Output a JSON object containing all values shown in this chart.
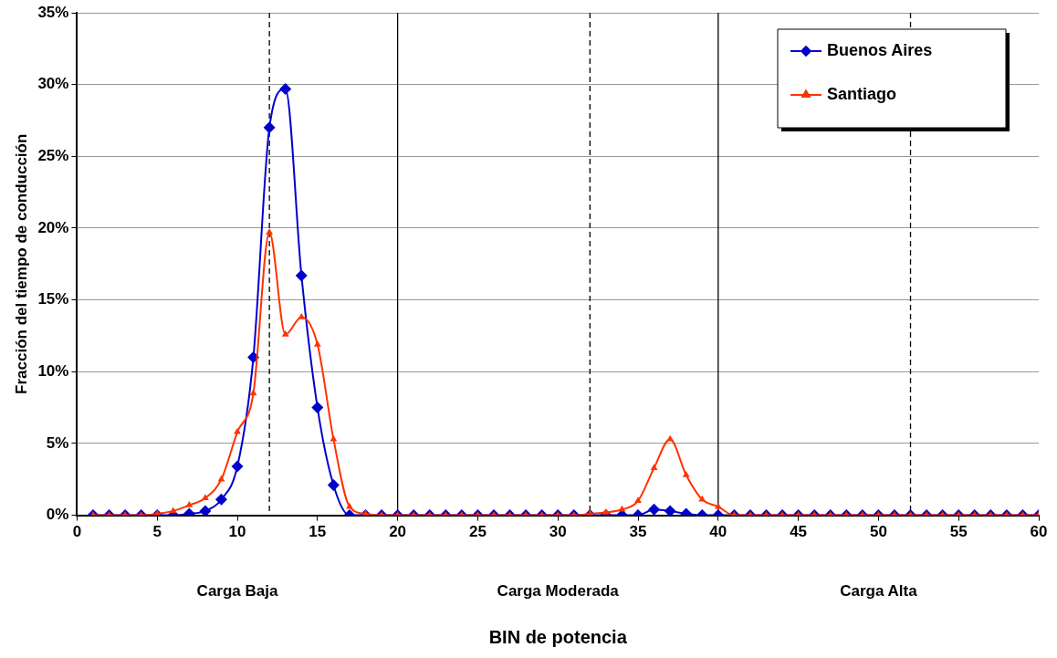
{
  "chart_data": {
    "type": "line",
    "xlabel": "BIN de potencia",
    "ylabel": "Fracción del tiempo de conducción",
    "x": [
      1,
      2,
      3,
      4,
      5,
      6,
      7,
      8,
      9,
      10,
      11,
      12,
      13,
      14,
      15,
      16,
      17,
      18,
      19,
      20,
      21,
      22,
      23,
      24,
      25,
      26,
      27,
      28,
      29,
      30,
      31,
      32,
      33,
      34,
      35,
      36,
      37,
      38,
      39,
      40,
      41,
      42,
      43,
      44,
      45,
      46,
      47,
      48,
      49,
      50,
      51,
      52,
      53,
      54,
      55,
      56,
      57,
      58,
      59,
      60
    ],
    "series": [
      {
        "name": "Buenos Aires",
        "color": "#0000cc",
        "marker": "diamond",
        "values": [
          0,
          0,
          0,
          0,
          0,
          0,
          0.1,
          0.3,
          1.1,
          3.4,
          11,
          27,
          29.7,
          16.7,
          7.5,
          2.1,
          0,
          0,
          0,
          0,
          0,
          0,
          0,
          0,
          0,
          0,
          0,
          0,
          0,
          0,
          0,
          0,
          0,
          0,
          0,
          0.4,
          0.3,
          0.1,
          0,
          0,
          0,
          0,
          0,
          0,
          0,
          0,
          0,
          0,
          0,
          0,
          0,
          0,
          0,
          0,
          0,
          0,
          0,
          0,
          0,
          0
        ]
      },
      {
        "name": "Santiago",
        "color": "#ff3300",
        "marker": "triangle",
        "values": [
          0,
          0,
          0,
          0,
          0.1,
          0.3,
          0.7,
          1.2,
          2.5,
          5.8,
          8.5,
          19.7,
          12.6,
          13.8,
          11.9,
          5.3,
          0.6,
          0.1,
          0,
          0,
          0,
          0,
          0,
          0,
          0,
          0,
          0,
          0,
          0,
          0,
          0,
          0.1,
          0.2,
          0.4,
          1,
          3.3,
          5.3,
          2.8,
          1.1,
          0.6,
          0,
          0,
          0,
          0,
          0,
          0,
          0,
          0,
          0,
          0,
          0,
          0,
          0,
          0,
          0,
          0,
          0,
          0,
          0,
          0
        ]
      }
    ],
    "xlim": [
      0,
      60
    ],
    "xticks": [
      0,
      5,
      10,
      15,
      20,
      25,
      30,
      35,
      40,
      45,
      50,
      55,
      60
    ],
    "ylim": [
      0,
      35
    ],
    "yticks": [
      {
        "value": 0,
        "label": "0%"
      },
      {
        "value": 5,
        "label": "5%"
      },
      {
        "value": 10,
        "label": "10%"
      },
      {
        "value": 15,
        "label": "15%"
      },
      {
        "value": 20,
        "label": "20%"
      },
      {
        "value": 25,
        "label": "25%"
      },
      {
        "value": 30,
        "label": "30%"
      },
      {
        "value": 35,
        "label": "35%"
      }
    ],
    "ref_lines": [
      {
        "axis": "x",
        "value": 12,
        "color": "#000000",
        "line_style": "dashed"
      },
      {
        "axis": "x",
        "value": 20,
        "color": "#000000",
        "line_style": "solid"
      },
      {
        "axis": "x",
        "value": 32,
        "color": "#000000",
        "line_style": "dashed"
      },
      {
        "axis": "x",
        "value": 40,
        "color": "#000000",
        "line_style": "solid"
      },
      {
        "axis": "x",
        "value": 52,
        "color": "#000000",
        "line_style": "dashed"
      }
    ],
    "annotations": [
      "Carga Baja",
      "Carga Moderada",
      "Carga Alta"
    ],
    "grid": "y",
    "legend": "top right"
  }
}
